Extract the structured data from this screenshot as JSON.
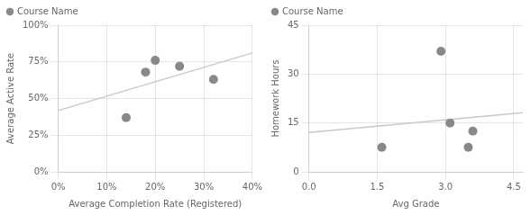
{
  "chart_data": [
    {
      "type": "scatter",
      "xlabel": "Average Completion Rate (Registered)",
      "ylabel": "Average Active Rate",
      "xlim": [
        0.0,
        0.4
      ],
      "ylim": [
        0.0,
        1.0
      ],
      "xticks": [
        {
          "value": 0.0,
          "label": "0%"
        },
        {
          "value": 0.1,
          "label": "10%"
        },
        {
          "value": 0.2,
          "label": "20%"
        },
        {
          "value": 0.3,
          "label": "30%"
        },
        {
          "value": 0.4,
          "label": "40%"
        }
      ],
      "yticks": [
        {
          "value": 0.0,
          "label": "0%"
        },
        {
          "value": 0.25,
          "label": "25%"
        },
        {
          "value": 0.5,
          "label": "50%"
        },
        {
          "value": 0.75,
          "label": "75%"
        },
        {
          "value": 1.0,
          "label": "100%"
        }
      ],
      "grid": true,
      "legend": "upper left",
      "series": [
        {
          "name": "Course Name",
          "type": "scatter",
          "color": "#888888",
          "x": [
            0.14,
            0.18,
            0.2,
            0.25,
            0.32
          ],
          "values": [
            0.37,
            0.68,
            0.76,
            0.72,
            0.63
          ]
        },
        {
          "type": "line",
          "color": "#c8c8c8",
          "x": [
            0.0,
            0.4
          ],
          "values": [
            0.4180705,
            0.8106016
          ]
        }
      ]
    },
    {
      "type": "scatter",
      "xlabel": "Avg Grade",
      "ylabel": "Homework Hours",
      "xlim": [
        0,
        4.7
      ],
      "ylim": [
        0,
        45
      ],
      "xticks": [
        {
          "value": 0,
          "label": "0.0"
        },
        1.5,
        {
          "value": 3.0,
          "label": "3.0"
        },
        4.5
      ],
      "yticks": [
        0,
        15,
        30,
        45
      ],
      "grid": true,
      "legend": "upper left",
      "series": [
        {
          "name": "Course Name",
          "type": "scatter",
          "color": "#888888",
          "x": [
            1.6,
            2.9,
            3.1,
            3.5,
            3.6
          ],
          "values": [
            7.5,
            37.0,
            15.0,
            7.5,
            12.5
          ]
        },
        {
          "type": "line",
          "color": "#c8c8c8",
          "x": [
            0,
            4.7
          ],
          "values": [
            12.1049767,
            18.1718507
          ]
        }
      ]
    }
  ]
}
